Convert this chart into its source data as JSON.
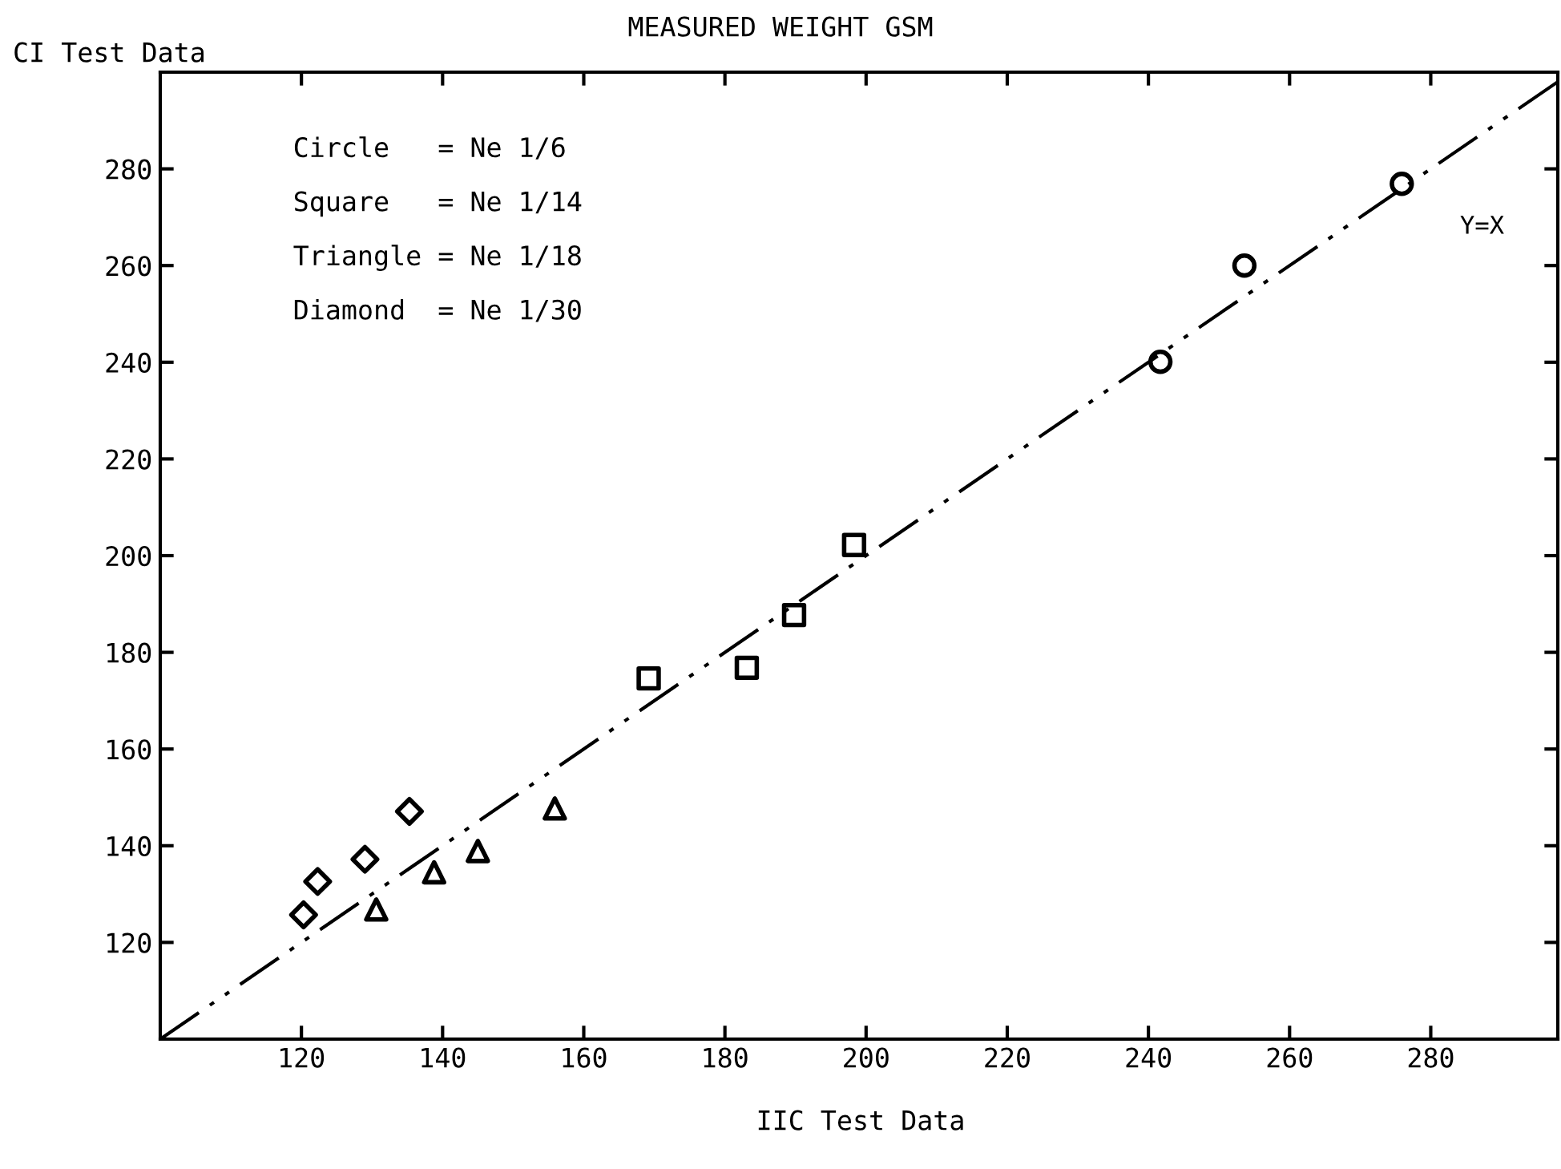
{
  "chart_data": {
    "type": "scatter",
    "title": "MEASURED WEIGHT GSM",
    "xlabel": "IIC Test Data",
    "ylabel": "CI Test Data",
    "xlim": [
      100,
      298
    ],
    "ylim": [
      100,
      300
    ],
    "xticks": [
      120,
      140,
      160,
      180,
      200,
      220,
      240,
      260,
      280
    ],
    "yticks": [
      120,
      140,
      160,
      180,
      200,
      220,
      240,
      260,
      280
    ],
    "grid": false,
    "legend": false,
    "annotations": [
      "Circle   = Ne 1/6",
      "Square   = Ne 1/14",
      "Triangle = Ne 1/18",
      "Diamond  = Ne 1/30",
      "Y=X"
    ],
    "series": [
      {
        "marker": "circle",
        "color": "#000000",
        "x": [
          241.7,
          253.6,
          275.9
        ],
        "values": [
          240.1,
          260.0,
          276.9
        ]
      },
      {
        "marker": "square",
        "color": "#000000",
        "x": [
          169.2,
          183.1,
          189.8,
          198.3
        ],
        "values": [
          174.6,
          176.8,
          187.7,
          202.2
        ]
      },
      {
        "marker": "triangle",
        "color": "#000000",
        "x": [
          130.6,
          138.8,
          145.0,
          155.9
        ],
        "values": [
          126.8,
          134.5,
          138.9,
          147.7
        ]
      },
      {
        "marker": "diamond",
        "color": "#000000",
        "x": [
          120.3,
          122.3,
          129.0,
          135.3
        ],
        "values": [
          125.7,
          132.6,
          137.2,
          147.1
        ]
      },
      {
        "type": "line",
        "line_style": "dashdot",
        "marker": "none",
        "color": "#000000",
        "x": [
          100,
          298
        ],
        "values": [
          100,
          298
        ]
      }
    ]
  }
}
